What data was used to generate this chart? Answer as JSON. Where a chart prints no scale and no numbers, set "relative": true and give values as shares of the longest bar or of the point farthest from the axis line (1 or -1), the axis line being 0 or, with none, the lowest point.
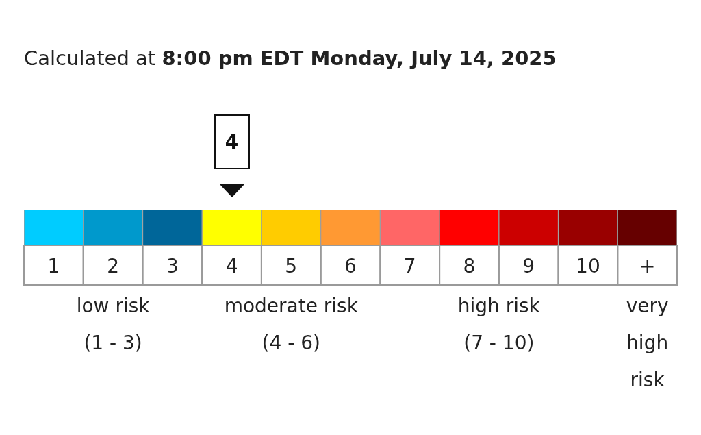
{
  "chart_data": {
    "type": "bar",
    "relative": true,
    "title": "Calculated at",
    "subtitle": "8:00 pm EDT Monday, July 14, 2025",
    "categories": [
      "1",
      "2",
      "3",
      "4",
      "5",
      "6",
      "7",
      "8",
      "9",
      "10",
      "+"
    ],
    "values": [
      1,
      1,
      1,
      1,
      1,
      1,
      1,
      1,
      1,
      1,
      1
    ],
    "colors": [
      "#00ccff",
      "#0099cc",
      "#006699",
      "#ffff00",
      "#ffcc00",
      "#ff9933",
      "#ff6666",
      "#ff0000",
      "#cc0000",
      "#990000",
      "#660000"
    ],
    "needle": "4",
    "annotations": [
      "low risk\n(1 - 3)",
      "moderate risk\n(4 - 6)",
      "high risk\n(7 - 10)",
      "very\nhigh\nrisk"
    ]
  }
}
